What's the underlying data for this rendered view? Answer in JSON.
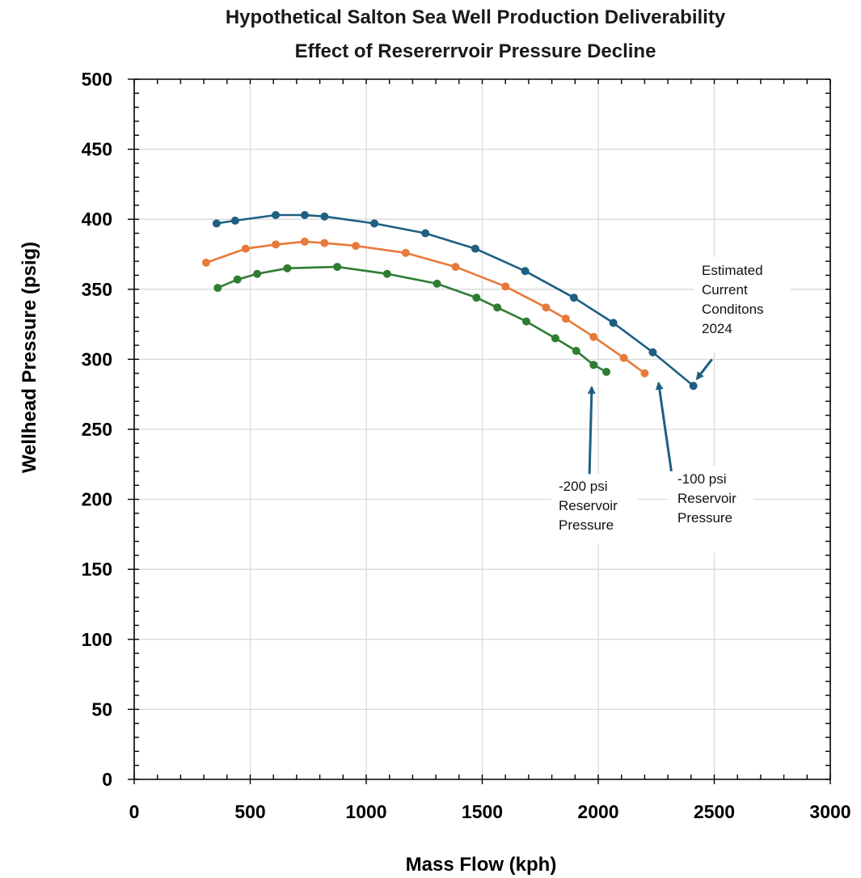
{
  "chart_data": {
    "type": "line",
    "title": "Hypothetical Salton Sea Well Production Deliverability",
    "subtitle": "Effect of Resererrvoir Pressure Decline",
    "xlabel": "Mass Flow (kph)",
    "ylabel": "Wellhead Pressure (psig)",
    "xlim": [
      0,
      3000
    ],
    "ylim": [
      0,
      500
    ],
    "x_ticks": [
      0,
      500,
      1000,
      1500,
      2000,
      2500,
      3000
    ],
    "y_ticks": [
      0,
      50,
      100,
      150,
      200,
      250,
      300,
      350,
      400,
      450,
      500
    ],
    "grid": true,
    "series": [
      {
        "color": "#1f5f82",
        "x": [
          355,
          435,
          610,
          735,
          820,
          1035,
          1255,
          1470,
          1685,
          1895,
          2065,
          2235,
          2410
        ],
        "y": [
          397,
          399,
          403,
          403,
          402,
          397,
          390,
          379,
          363,
          344,
          326,
          305,
          281
        ]
      },
      {
        "color": "#e8793a",
        "x": [
          310,
          480,
          610,
          735,
          820,
          955,
          1170,
          1385,
          1600,
          1775,
          1860,
          1980,
          2110,
          2200
        ],
        "y": [
          369,
          379,
          382,
          384,
          383,
          381,
          376,
          366,
          352,
          337,
          329,
          316,
          301,
          290
        ]
      },
      {
        "color": "#2e7d32",
        "x": [
          360,
          445,
          530,
          660,
          875,
          1090,
          1305,
          1475,
          1565,
          1690,
          1815,
          1905,
          1980,
          2035
        ],
        "y": [
          351,
          357,
          361,
          365,
          366,
          361,
          354,
          344,
          337,
          327,
          315,
          306,
          296,
          291
        ]
      }
    ],
    "annotations": [
      {
        "id": "current",
        "lines": [
          "Estimated",
          "Current",
          "Conditons",
          "2024"
        ],
        "arrow_color": "#1f5f82",
        "from": [
          2490,
          300
        ],
        "to": [
          2425,
          286
        ]
      },
      {
        "id": "minus100",
        "lines": [
          "-100 psi",
          "Reservoir",
          "Pressure"
        ],
        "arrow_color": "#1f5f82",
        "from": [
          2315,
          220
        ],
        "to": [
          2260,
          283
        ]
      },
      {
        "id": "minus200",
        "lines": [
          "-200 psi",
          "Reservoir",
          "Pressure"
        ],
        "arrow_color": "#1f5f82",
        "from": [
          1962,
          218
        ],
        "to": [
          1972,
          280
        ]
      }
    ]
  }
}
